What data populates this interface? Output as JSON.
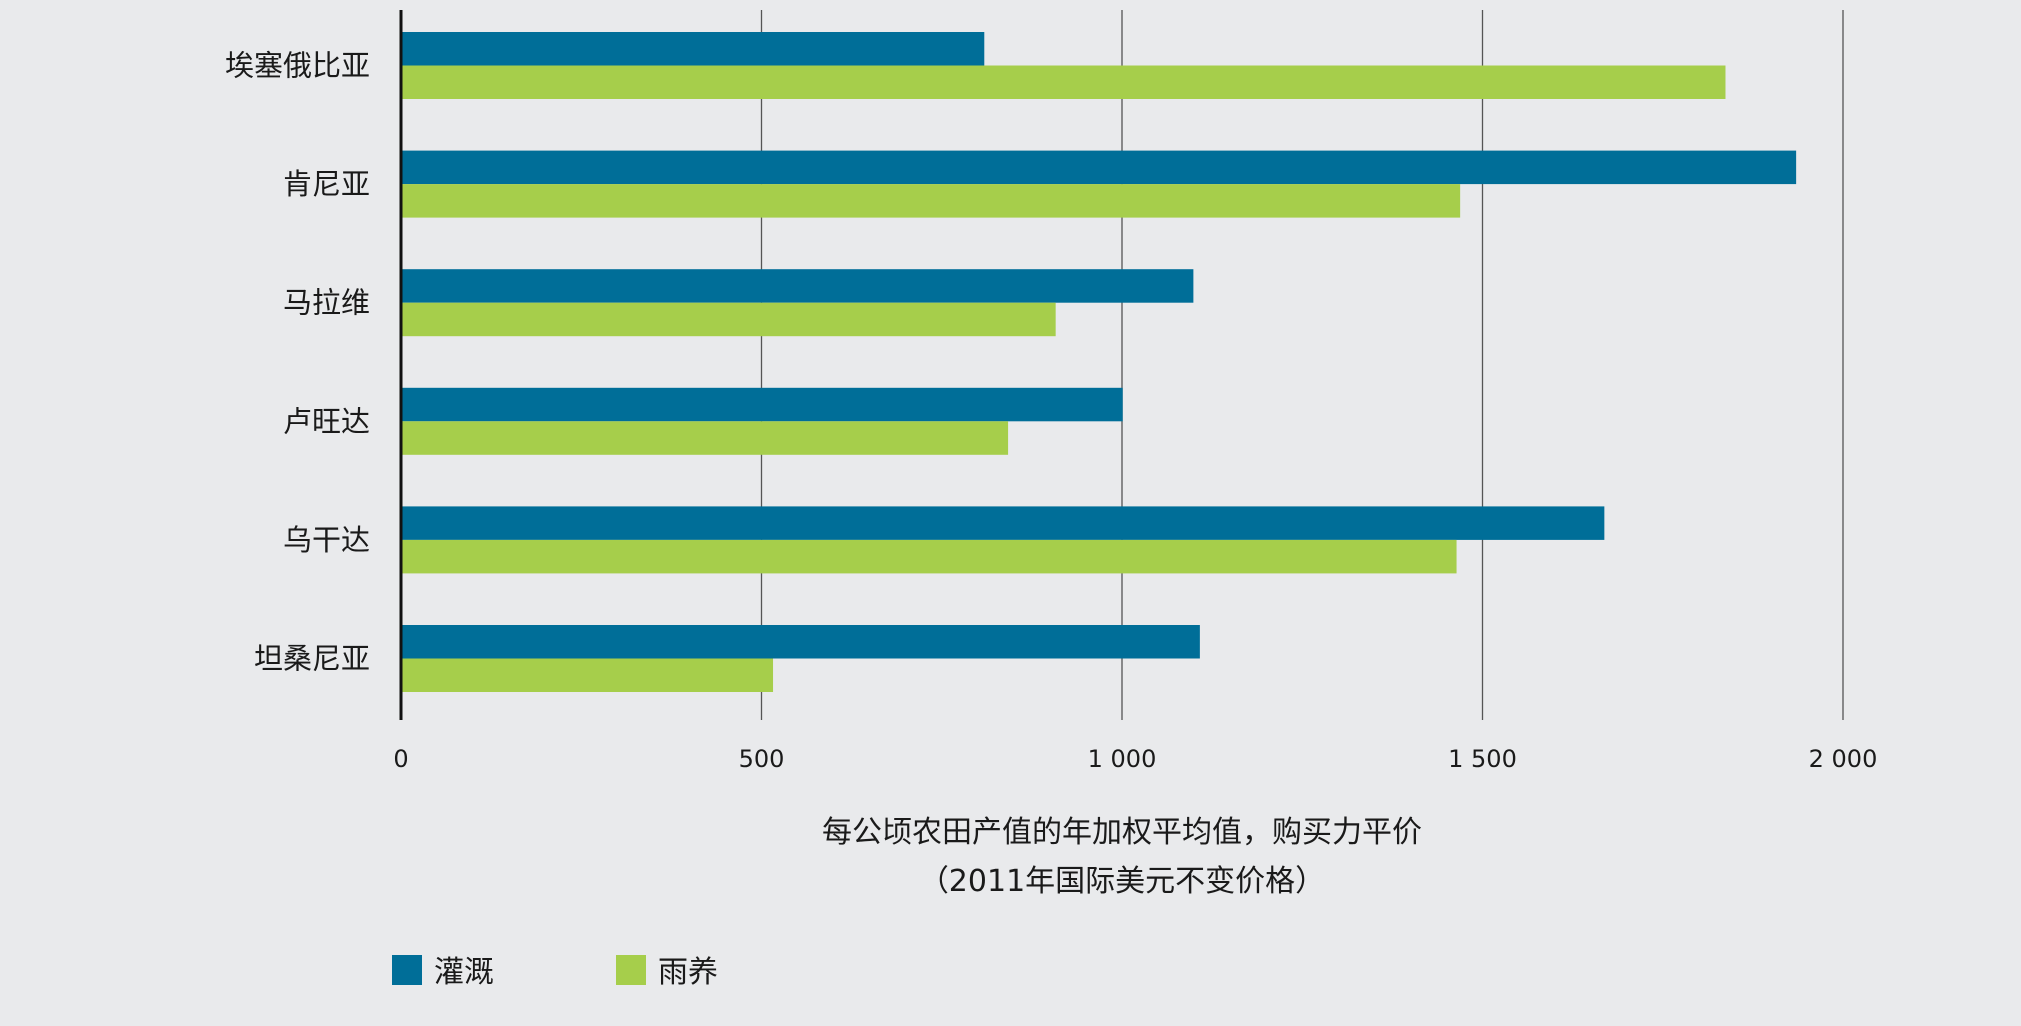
{
  "chart_data": {
    "type": "bar",
    "orientation": "horizontal",
    "categories": [
      "埃塞俄比亚",
      "肯尼亚",
      "马拉维",
      "卢旺达",
      "乌干达",
      "坦桑尼亚"
    ],
    "series": [
      {
        "name": "灌溉",
        "color": "#006e98",
        "values": [
          809,
          1935,
          1099,
          1001,
          1669,
          1108
        ]
      },
      {
        "name": "雨养",
        "color": "#a6ce4b",
        "values": [
          1837,
          1469,
          908,
          842,
          1464,
          516
        ]
      }
    ],
    "xlim": [
      0,
      2000
    ],
    "xticks": [
      0,
      500,
      1000,
      1500,
      2000
    ],
    "xtick_labels": [
      "0",
      "500",
      "1 000",
      "1 500",
      "2 000"
    ],
    "xlabel_line1": "每公顷农田产值的年加权平均值，购买力平价",
    "xlabel_line2": "（2011年国际美元不变价格）",
    "grid": "vertical",
    "legend": "bottom-left"
  }
}
